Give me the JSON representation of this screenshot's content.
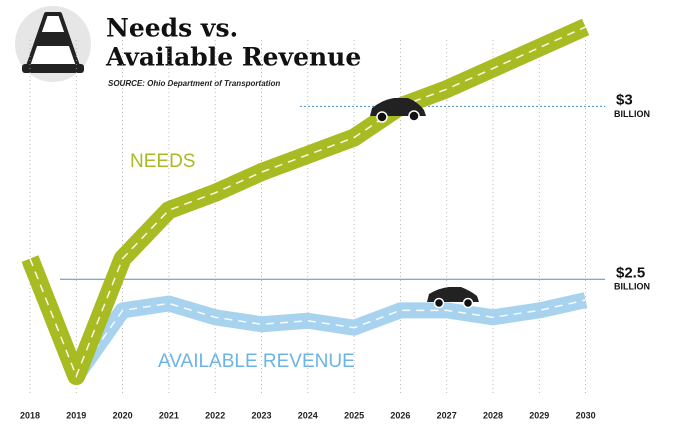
{
  "chart_data": {
    "type": "line",
    "title": [
      "Needs vs.",
      "Available Revenue"
    ],
    "source": "SOURCE: Ohio Department of Transportation",
    "categories": [
      "2018",
      "2019",
      "2020",
      "2021",
      "2022",
      "2023",
      "2024",
      "2025",
      "2026",
      "2027",
      "2028",
      "2029",
      "2030"
    ],
    "series": [
      {
        "name": "NEEDS",
        "color": "#a9bb22",
        "values": [
          2.56,
          2.22,
          2.56,
          2.7,
          2.75,
          2.81,
          2.86,
          2.91,
          3.0,
          3.05,
          3.11,
          3.17,
          3.23
        ]
      },
      {
        "name": "AVAILABLE REVENUE",
        "color": "#a8d3ef",
        "values": [
          2.55,
          2.22,
          2.41,
          2.43,
          2.39,
          2.37,
          2.38,
          2.36,
          2.41,
          2.41,
          2.39,
          2.41,
          2.44
        ]
      }
    ],
    "ylim": [
      2.2,
      3.25
    ],
    "yticks": [
      {
        "value": 2.5,
        "label": "$2.5"
      },
      {
        "value": 3,
        "label": "$3"
      }
    ],
    "ytick_unit": "BILLION",
    "grid": true
  }
}
